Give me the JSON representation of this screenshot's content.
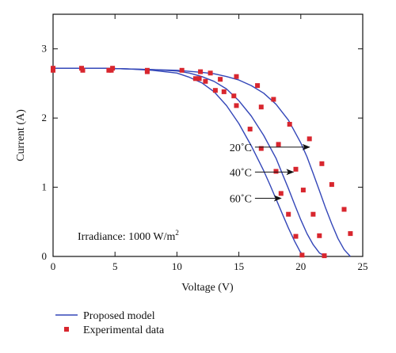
{
  "chart_data": {
    "type": "line",
    "title": "",
    "xlabel": "Voltage (V)",
    "ylabel": "Current (A)",
    "xlim": [
      0,
      25
    ],
    "ylim": [
      0,
      3.5
    ],
    "xticks": [
      0,
      5,
      10,
      15,
      20,
      25
    ],
    "yticks": [
      0,
      1,
      2,
      3
    ],
    "grid": false,
    "legend_position": "bottom-left",
    "colors": {
      "model": "#3346b8",
      "experimental": "#d8262e"
    },
    "series": [
      {
        "name": "Proposed model",
        "kind": "line",
        "curves": [
          {
            "temperature": "20°C",
            "x": [
              0,
              2,
              4,
              6,
              8,
              10,
              12,
              13,
              14,
              15,
              16,
              17,
              18,
              19,
              20,
              20.5,
              21,
              21.5,
              22,
              22.5,
              23,
              23.5,
              24
            ],
            "y": [
              2.72,
              2.72,
              2.72,
              2.71,
              2.7,
              2.69,
              2.66,
              2.64,
              2.6,
              2.55,
              2.47,
              2.36,
              2.2,
              1.97,
              1.64,
              1.44,
              1.2,
              0.95,
              0.7,
              0.47,
              0.26,
              0.1,
              0
            ]
          },
          {
            "temperature": "40°C",
            "x": [
              0,
              2,
              4,
              6,
              8,
              10,
              11,
              12,
              13,
              14,
              15,
              16,
              17,
              18,
              18.5,
              19,
              19.5,
              20,
              20.5,
              21,
              21.5,
              22
            ],
            "y": [
              2.72,
              2.72,
              2.72,
              2.71,
              2.7,
              2.68,
              2.65,
              2.6,
              2.53,
              2.42,
              2.25,
              2.03,
              1.75,
              1.42,
              1.2,
              0.98,
              0.75,
              0.53,
              0.33,
              0.17,
              0.05,
              0
            ]
          },
          {
            "temperature": "60°C",
            "x": [
              0,
              2,
              4,
              6,
              8,
              10,
              11,
              12,
              13,
              14,
              15,
              16,
              17,
              17.5,
              18,
              18.5,
              19,
              19.5,
              20,
              20.2
            ],
            "y": [
              2.72,
              2.72,
              2.72,
              2.71,
              2.69,
              2.65,
              2.59,
              2.51,
              2.38,
              2.18,
              1.92,
              1.6,
              1.24,
              1.04,
              0.83,
              0.62,
              0.41,
              0.22,
              0.05,
              0
            ]
          }
        ]
      },
      {
        "name": "Experimental data",
        "kind": "scatter",
        "curves": [
          {
            "temperature": "20°C",
            "x": [
              0,
              2.3,
              4.8,
              7.6,
              10.4,
              11.9,
              12.7,
              13.5,
              14.8,
              16.5,
              17.8,
              19.1,
              20.7,
              21.7,
              22.5,
              23.5,
              24
            ],
            "y": [
              2.72,
              2.72,
              2.72,
              2.69,
              2.69,
              2.67,
              2.65,
              2.56,
              2.6,
              2.47,
              2.27,
              1.91,
              1.7,
              1.34,
              1.04,
              0.68,
              0.33
            ]
          },
          {
            "temperature": "40°C",
            "x": [
              0,
              2.4,
              4.7,
              7.6,
              11.5,
              12.3,
              13.8,
              14.6,
              16.8,
              18.2,
              19.6,
              20.2,
              21.0,
              21.5,
              21.9
            ],
            "y": [
              2.7,
              2.69,
              2.69,
              2.67,
              2.57,
              2.53,
              2.38,
              2.32,
              2.16,
              1.62,
              1.26,
              0.96,
              0.61,
              0.3,
              0.01
            ]
          },
          {
            "temperature": "60°C",
            "x": [
              0,
              4.5,
              11.8,
              13.1,
              14.8,
              15.9,
              16.8,
              18.0,
              18.4,
              19.0,
              19.6,
              20.1
            ],
            "y": [
              2.69,
              2.69,
              2.57,
              2.4,
              2.18,
              1.84,
              1.56,
              1.23,
              0.91,
              0.61,
              0.29,
              0.02
            ]
          }
        ]
      }
    ],
    "annotations": [
      {
        "text": "20˚C",
        "arrow_from": [
          16.3,
          1.58
        ],
        "arrow_to": [
          20.7,
          1.58
        ]
      },
      {
        "text": "40˚C",
        "arrow_from": [
          16.3,
          1.22
        ],
        "arrow_to": [
          19.4,
          1.22
        ]
      },
      {
        "text": "60˚C",
        "arrow_from": [
          16.3,
          0.84
        ],
        "arrow_to": [
          18.4,
          0.84
        ]
      }
    ],
    "irradiance_label": "Irradiance: 1000 W/m",
    "irradiance_superscript": "2"
  },
  "legend": {
    "items": [
      {
        "label": "Proposed model",
        "kind": "line"
      },
      {
        "label": "Experimental data",
        "kind": "marker"
      }
    ]
  }
}
